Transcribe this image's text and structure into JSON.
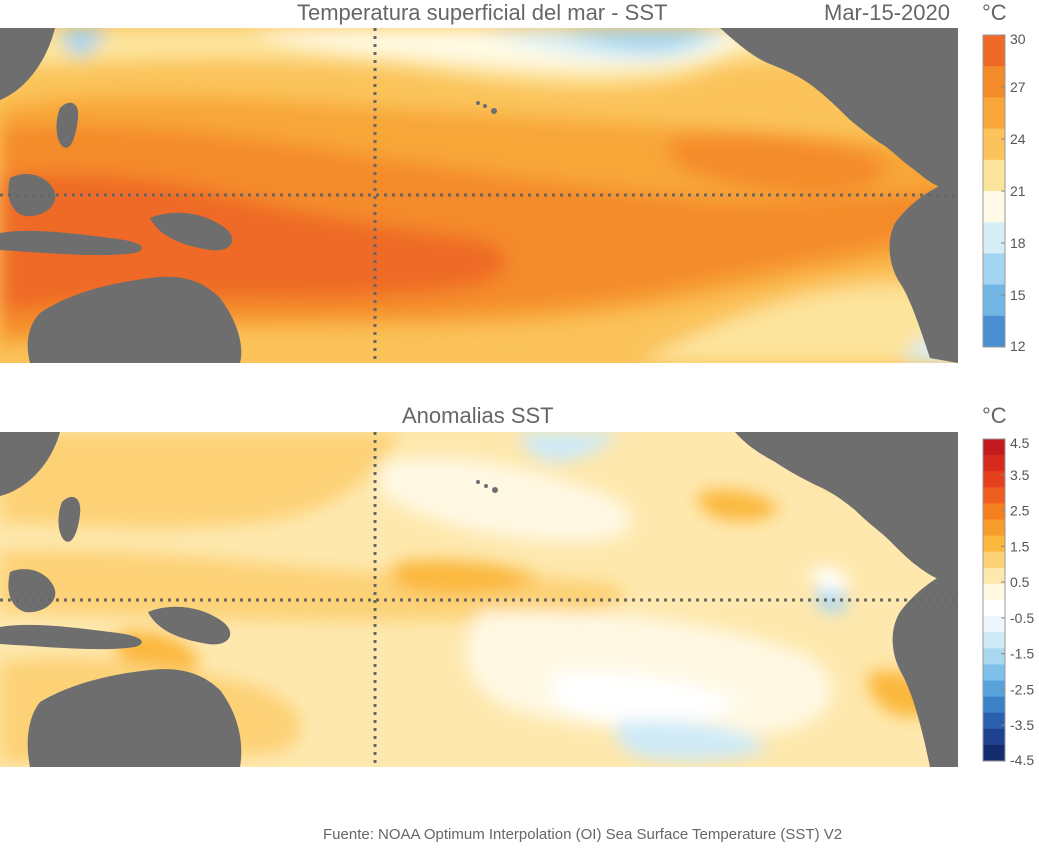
{
  "top_panel": {
    "title": "Temperatura superficial del mar - SST",
    "date": "Mar-15-2020",
    "unit": "°C",
    "colorbar": {
      "ticks": [
        "30",
        "27",
        "24",
        "21",
        "18",
        "15",
        "12"
      ],
      "colors": [
        "#ef6a28",
        "#f48b2b",
        "#f8a637",
        "#fbc35a",
        "#fde49c",
        "#fffbe6",
        "#d7eef7",
        "#a3d4f1",
        "#72b6e6",
        "#4a8fd2"
      ]
    }
  },
  "bottom_panel": {
    "title": "Anomalias SST",
    "unit": "°C",
    "colorbar": {
      "ticks": [
        "4.5",
        "3.5",
        "2.5",
        "1.5",
        "0.5",
        "-0.5",
        "-1.5",
        "-2.5",
        "-3.5",
        "-4.5"
      ],
      "colors": [
        "#c31a1f",
        "#d8291e",
        "#e6401c",
        "#ef5d1f",
        "#f4801f",
        "#f89d2b",
        "#fbb83c",
        "#fdd277",
        "#fee8ad",
        "#fff8e3",
        "#ffffff",
        "#edf7fd",
        "#cfeaf7",
        "#aad8f1",
        "#7fc0ea",
        "#58a2dc",
        "#3b81c8",
        "#2a60ad",
        "#1e4290",
        "#142b6e"
      ]
    }
  },
  "source": "Fuente: NOAA Optimum Interpolation (OI) Sea Surface Temperature (SST) V2",
  "palette": {
    "land": "#6e6e6e",
    "grid_line": "#666666"
  }
}
